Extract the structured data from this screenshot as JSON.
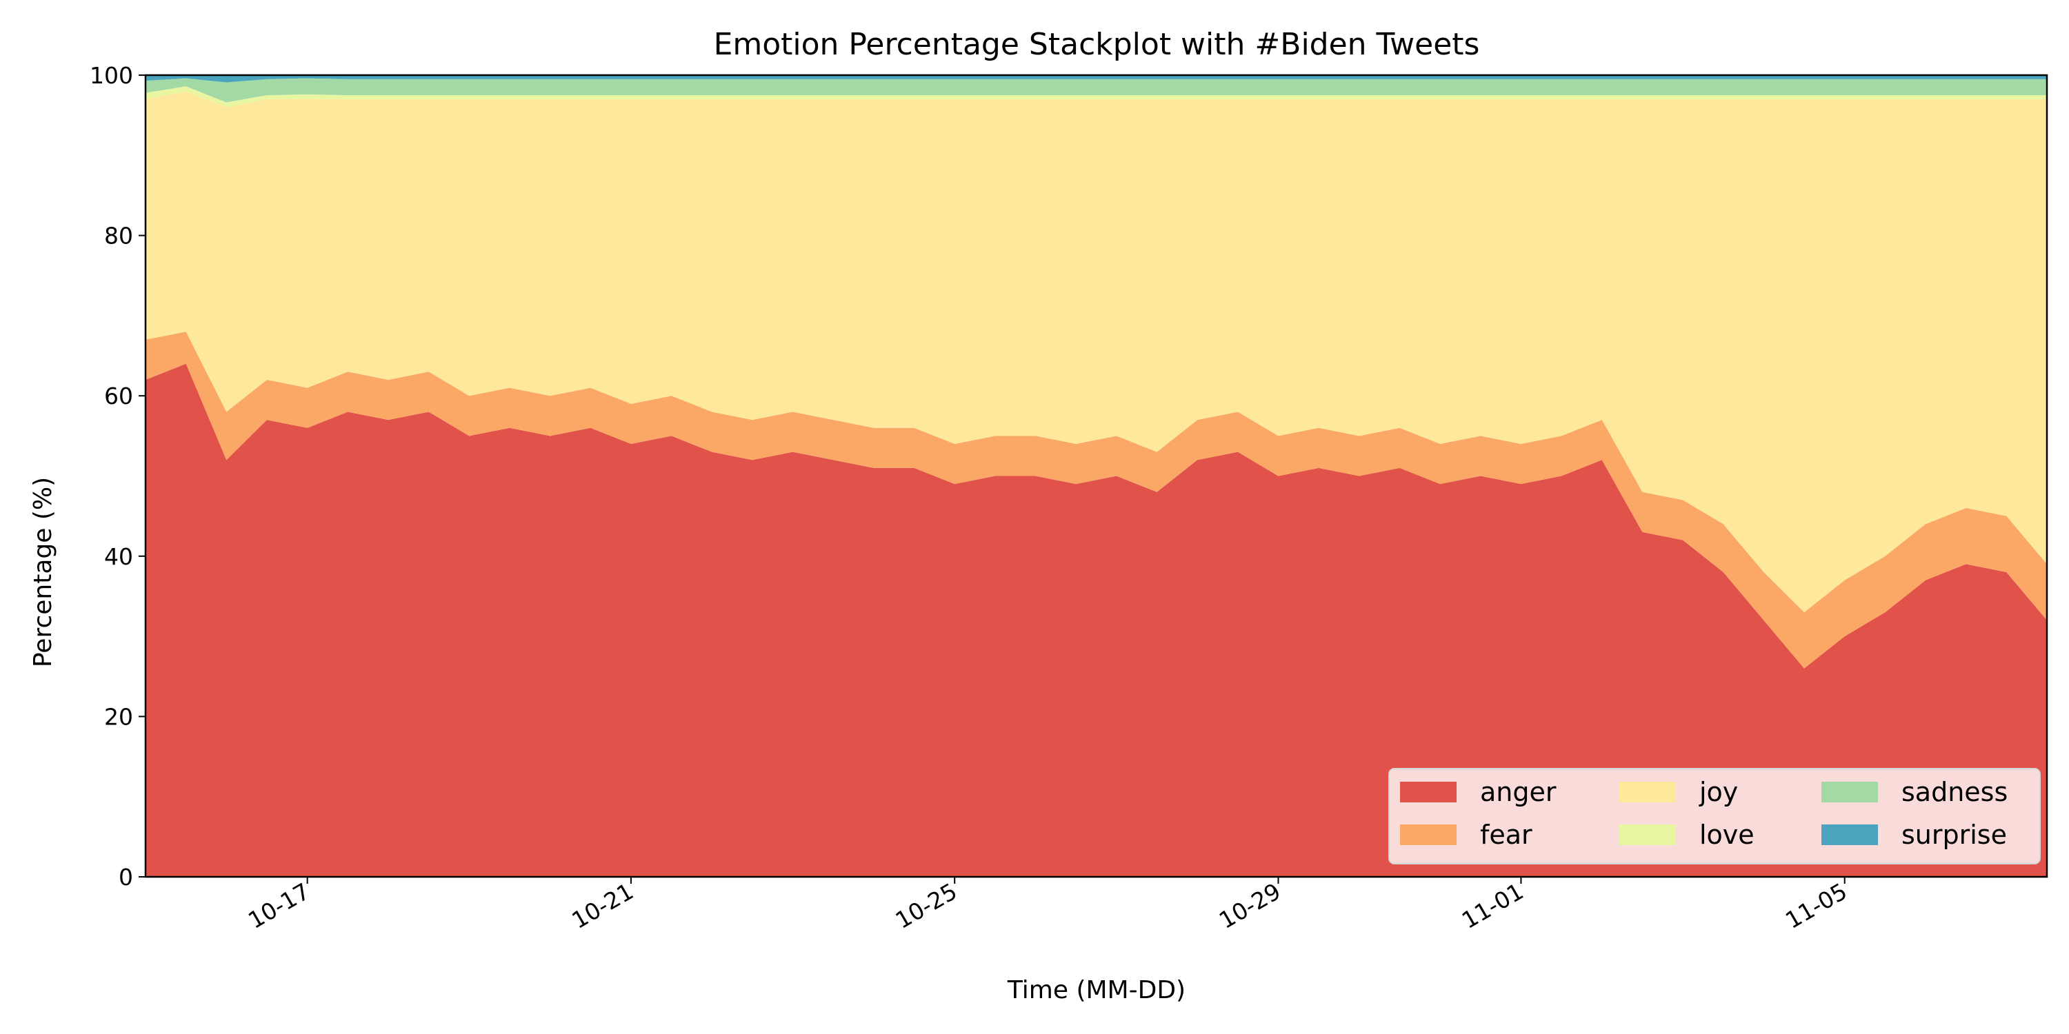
{
  "chart_data": {
    "type": "area",
    "stacked": true,
    "title": "Emotion Percentage Stackplot with #Biden Tweets",
    "xlabel": "Time (MM-DD)",
    "ylabel": "Percentage (%)",
    "xlim": [
      "2020-10-15T00:00",
      "2020-11-07T12:00"
    ],
    "ylim": [
      0,
      100
    ],
    "yticks": [
      0,
      20,
      40,
      60,
      80,
      100
    ],
    "xticks": [
      {
        "date": "2020-10-17",
        "label": "10-17"
      },
      {
        "date": "2020-10-21",
        "label": "10-21"
      },
      {
        "date": "2020-10-25",
        "label": "10-25"
      },
      {
        "date": "2020-10-29",
        "label": "10-29"
      },
      {
        "date": "2020-11-01",
        "label": "11-01"
      },
      {
        "date": "2020-11-05",
        "label": "11-05"
      }
    ],
    "legend_position": "lower-right",
    "grid": false,
    "x": [
      "2020-10-15T00:00",
      "2020-10-15T12:00",
      "2020-10-16T00:00",
      "2020-10-16T12:00",
      "2020-10-17T00:00",
      "2020-10-17T12:00",
      "2020-10-18T00:00",
      "2020-10-18T12:00",
      "2020-10-19T00:00",
      "2020-10-19T12:00",
      "2020-10-20T00:00",
      "2020-10-20T12:00",
      "2020-10-21T00:00",
      "2020-10-21T12:00",
      "2020-10-22T00:00",
      "2020-10-22T12:00",
      "2020-10-23T00:00",
      "2020-10-23T12:00",
      "2020-10-24T00:00",
      "2020-10-24T12:00",
      "2020-10-25T00:00",
      "2020-10-25T12:00",
      "2020-10-26T00:00",
      "2020-10-26T12:00",
      "2020-10-27T00:00",
      "2020-10-27T12:00",
      "2020-10-28T00:00",
      "2020-10-28T12:00",
      "2020-10-29T00:00",
      "2020-10-29T12:00",
      "2020-10-30T00:00",
      "2020-10-30T12:00",
      "2020-10-31T00:00",
      "2020-10-31T12:00",
      "2020-11-01T00:00",
      "2020-11-01T12:00",
      "2020-11-02T00:00",
      "2020-11-02T12:00",
      "2020-11-03T00:00",
      "2020-11-03T12:00",
      "2020-11-04T00:00",
      "2020-11-04T12:00",
      "2020-11-05T00:00",
      "2020-11-05T12:00",
      "2020-11-06T00:00",
      "2020-11-06T12:00",
      "2020-11-07T00:00",
      "2020-11-07T12:00"
    ],
    "series": [
      {
        "name": "anger",
        "color": "#e1524a",
        "values": [
          62,
          64,
          52,
          57,
          56,
          58,
          57,
          58,
          55,
          56,
          55,
          56,
          54,
          55,
          53,
          52,
          53,
          52,
          51,
          51,
          49,
          50,
          50,
          49,
          50,
          48,
          52,
          53,
          50,
          51,
          50,
          51,
          49,
          50,
          49,
          50,
          52,
          43,
          42,
          38,
          32,
          26,
          30,
          33,
          37,
          39,
          38,
          32
        ]
      },
      {
        "name": "fear",
        "color": "#fba866",
        "values": [
          5,
          4,
          6,
          5,
          5,
          5,
          5,
          5,
          5,
          5,
          5,
          5,
          5,
          5,
          5,
          5,
          5,
          5,
          5,
          5,
          5,
          5,
          5,
          5,
          5,
          5,
          5,
          5,
          5,
          5,
          5,
          5,
          5,
          5,
          5,
          5,
          5,
          5,
          5,
          6,
          6,
          7,
          7,
          7,
          7,
          7,
          7,
          7
        ]
      },
      {
        "name": "joy",
        "color": "#fde89b",
        "values": [
          30,
          30,
          38,
          35,
          36,
          34,
          35,
          34,
          37,
          36,
          37,
          36,
          38,
          37,
          39,
          40,
          39,
          40,
          41,
          41,
          43,
          42,
          42,
          43,
          42,
          44,
          40,
          39,
          42,
          41,
          42,
          41,
          43,
          42,
          43,
          42,
          40,
          49,
          50,
          53,
          59,
          64,
          60,
          57,
          53,
          51,
          52,
          58
        ]
      },
      {
        "name": "love",
        "color": "#e9f6a1",
        "values": [
          0.8,
          0.6,
          0.6,
          0.5,
          0.6,
          0.5,
          0.5,
          0.5,
          0.5,
          0.5,
          0.5,
          0.5,
          0.5,
          0.5,
          0.5,
          0.5,
          0.5,
          0.5,
          0.5,
          0.5,
          0.5,
          0.5,
          0.5,
          0.5,
          0.5,
          0.5,
          0.5,
          0.5,
          0.5,
          0.5,
          0.5,
          0.5,
          0.5,
          0.5,
          0.5,
          0.5,
          0.5,
          0.5,
          0.5,
          0.5,
          0.5,
          0.5,
          0.5,
          0.5,
          0.5,
          0.5,
          0.5,
          0.5
        ]
      },
      {
        "name": "sadness",
        "color": "#a2d9a4",
        "values": [
          1.5,
          1.0,
          2.5,
          2.0,
          2.0,
          2.0,
          2.0,
          2.0,
          2.0,
          2.0,
          2.0,
          2.0,
          2.0,
          2.0,
          2.0,
          2.0,
          2.0,
          2.0,
          2.0,
          2.0,
          2.0,
          2.0,
          2.0,
          2.0,
          2.0,
          2.0,
          2.0,
          2.0,
          2.0,
          2.0,
          2.0,
          2.0,
          2.0,
          2.0,
          2.0,
          2.0,
          2.0,
          2.0,
          2.0,
          2.0,
          2.0,
          2.0,
          2.0,
          2.0,
          2.0,
          2.0,
          2.0,
          2.0
        ]
      },
      {
        "name": "surprise",
        "color": "#4ba4bd",
        "values": [
          0.7,
          0.4,
          0.9,
          0.5,
          0.4,
          0.5,
          0.5,
          0.5,
          0.5,
          0.5,
          0.5,
          0.5,
          0.5,
          0.5,
          0.5,
          0.5,
          0.5,
          0.5,
          0.5,
          0.5,
          0.5,
          0.5,
          0.5,
          0.5,
          0.5,
          0.5,
          0.5,
          0.5,
          0.5,
          0.5,
          0.5,
          0.5,
          0.5,
          0.5,
          0.5,
          0.5,
          0.5,
          0.5,
          0.5,
          0.5,
          0.5,
          0.5,
          0.5,
          0.5,
          0.5,
          0.5,
          0.5,
          0.5
        ]
      }
    ]
  }
}
